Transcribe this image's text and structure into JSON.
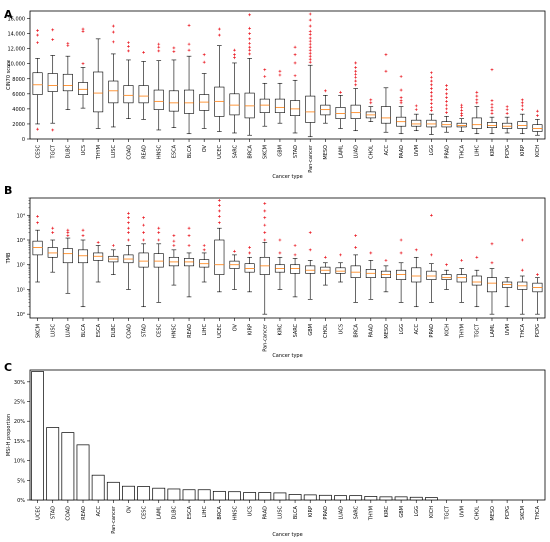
{
  "chart_data": [
    {
      "panel": "A",
      "type": "box",
      "xlabel": "Cancer type",
      "ylabel": "CIN70 score",
      "ylim": [
        0,
        17000
      ],
      "yticks": [
        0,
        2000,
        4000,
        6000,
        8000,
        10000,
        12000,
        14000,
        16000
      ],
      "ytick_labels": [
        "0",
        "2000",
        "4000",
        "6000",
        "8000",
        "10,000",
        "12,000",
        "14,000",
        "16,000"
      ],
      "categories": [
        "CESC",
        "TGCT",
        "DLBC",
        "UCS",
        "THYM",
        "LUSC",
        "COAD",
        "READ",
        "HNSC",
        "ESCA",
        "BLCA",
        "OV",
        "UCEC",
        "SARC",
        "BRCA",
        "SKCM",
        "GBM",
        "STAD",
        "Pan-cancer",
        "MESO",
        "LAML",
        "LUAD",
        "CHOL",
        "ACC",
        "PAAD",
        "UVM",
        "LGG",
        "PRAD",
        "THCA",
        "LIHC",
        "KIRC",
        "PCPG",
        "KIRP",
        "KICH"
      ],
      "boxes": [
        {
          "min": 2000,
          "q1": 5900,
          "median": 7200,
          "q3": 8800,
          "max": 10700,
          "outliers": [
            12800,
            13800,
            14400,
            1300
          ]
        },
        {
          "min": 2100,
          "q1": 6300,
          "median": 7100,
          "q3": 8700,
          "max": 11100,
          "outliers": [
            13200,
            14500,
            1200
          ]
        },
        {
          "min": 3900,
          "q1": 6400,
          "median": 7100,
          "q3": 8600,
          "max": 11000,
          "outliers": [
            12700,
            12400
          ]
        },
        {
          "min": 4100,
          "q1": 5900,
          "median": 6600,
          "q3": 7500,
          "max": 9500,
          "outliers": [
            14600,
            14300,
            10000
          ]
        },
        {
          "min": 1400,
          "q1": 3600,
          "median": 6100,
          "q3": 8900,
          "max": 13300,
          "outliers": []
        },
        {
          "min": 1600,
          "q1": 4800,
          "median": 6400,
          "q3": 7700,
          "max": 11300,
          "outliers": [
            12900,
            14200,
            15000
          ]
        },
        {
          "min": 2700,
          "q1": 4800,
          "median": 5800,
          "q3": 7100,
          "max": 10500,
          "outliers": [
            12300,
            12800,
            11700
          ]
        },
        {
          "min": 2600,
          "q1": 4800,
          "median": 5700,
          "q3": 7100,
          "max": 10300,
          "outliers": [
            11500
          ]
        },
        {
          "min": 1200,
          "q1": 3900,
          "median": 5000,
          "q3": 6500,
          "max": 10400,
          "outliers": [
            11700,
            12200,
            12600
          ]
        },
        {
          "min": 1500,
          "q1": 3700,
          "median": 4800,
          "q3": 6400,
          "max": 10500,
          "outliers": [
            11600,
            12100
          ]
        },
        {
          "min": 700,
          "q1": 3400,
          "median": 4800,
          "q3": 6500,
          "max": 11000,
          "outliers": [
            11800,
            12600,
            15100
          ]
        },
        {
          "min": 1400,
          "q1": 3800,
          "median": 4900,
          "q3": 5900,
          "max": 8700,
          "outliers": [
            11200,
            10200
          ]
        },
        {
          "min": 1000,
          "q1": 3000,
          "median": 5000,
          "q3": 6900,
          "max": 12400,
          "outliers": [
            13800,
            14600
          ]
        },
        {
          "min": 800,
          "q1": 3200,
          "median": 4500,
          "q3": 6000,
          "max": 10100,
          "outliers": [
            10800,
            11200,
            11800
          ]
        },
        {
          "min": 500,
          "q1": 2800,
          "median": 4400,
          "q3": 6100,
          "max": 10700,
          "outliers": [
            11300,
            11800,
            12200,
            12700,
            13300,
            14000,
            14700,
            16500
          ]
        },
        {
          "min": 1700,
          "q1": 3500,
          "median": 4500,
          "q3": 5300,
          "max": 7400,
          "outliers": [
            8300,
            9200
          ]
        },
        {
          "min": 2100,
          "q1": 3500,
          "median": 4200,
          "q3": 5300,
          "max": 7400,
          "outliers": [
            8500,
            9000
          ]
        },
        {
          "min": 800,
          "q1": 3100,
          "median": 4000,
          "q3": 5100,
          "max": 7800,
          "outliers": [
            8400,
            10100,
            11200,
            12200
          ]
        },
        {
          "min": 300,
          "q1": 2200,
          "median": 3600,
          "q3": 5700,
          "max": 9800,
          "outliers": [
            10200,
            10600,
            11000,
            11400,
            11800,
            12200,
            12600,
            13000,
            13400,
            13900,
            14300,
            15000,
            15800,
            16600
          ]
        },
        {
          "min": 2100,
          "q1": 3200,
          "median": 3900,
          "q3": 4500,
          "max": 5800,
          "outliers": [
            6400
          ]
        },
        {
          "min": 1400,
          "q1": 2700,
          "median": 3400,
          "q3": 4200,
          "max": 5800,
          "outliers": [
            6200
          ]
        },
        {
          "min": 1100,
          "q1": 2700,
          "median": 3500,
          "q3": 4500,
          "max": 6700,
          "outliers": [
            7200,
            7700,
            8200,
            8600,
            9000,
            9500,
            10100
          ]
        },
        {
          "min": 2300,
          "q1": 2800,
          "median": 3200,
          "q3": 3600,
          "max": 4300,
          "outliers": [
            5200,
            4800
          ]
        },
        {
          "min": 900,
          "q1": 2100,
          "median": 2800,
          "q3": 4300,
          "max": 6800,
          "outliers": [
            9000,
            11200
          ]
        },
        {
          "min": 700,
          "q1": 1700,
          "median": 2300,
          "q3": 2900,
          "max": 4300,
          "outliers": [
            4800,
            5100,
            5500,
            6500,
            8300
          ]
        },
        {
          "min": 1100,
          "q1": 1700,
          "median": 2000,
          "q3": 2500,
          "max": 3300,
          "outliers": [
            3900,
            4400
          ]
        },
        {
          "min": 600,
          "q1": 1600,
          "median": 2000,
          "q3": 2500,
          "max": 3300,
          "outliers": [
            3800,
            4200,
            4700,
            5200,
            5700,
            6200,
            6700,
            7200,
            7700,
            8200,
            8800
          ]
        },
        {
          "min": 900,
          "q1": 1600,
          "median": 1900,
          "q3": 2300,
          "max": 3000,
          "outliers": [
            3500,
            4000,
            4500,
            5000,
            5500,
            6000,
            6600,
            7100
          ]
        },
        {
          "min": 1000,
          "q1": 1600,
          "median": 1800,
          "q3": 2100,
          "max": 2700,
          "outliers": [
            3100,
            3400,
            3800,
            4200,
            4500
          ]
        },
        {
          "min": 700,
          "q1": 1400,
          "median": 1900,
          "q3": 2800,
          "max": 4300,
          "outliers": [
            4800,
            5200,
            5700,
            6200
          ]
        },
        {
          "min": 700,
          "q1": 1500,
          "median": 1800,
          "q3": 2200,
          "max": 2900,
          "outliers": [
            3400,
            3800,
            4200,
            4600,
            5100,
            9200
          ]
        },
        {
          "min": 800,
          "q1": 1400,
          "median": 1700,
          "q3": 2100,
          "max": 2900,
          "outliers": [
            3400,
            3900,
            4300
          ]
        },
        {
          "min": 700,
          "q1": 1400,
          "median": 1800,
          "q3": 2300,
          "max": 3300,
          "outliers": [
            3900,
            4400,
            4800,
            5200
          ]
        },
        {
          "min": 500,
          "q1": 1000,
          "median": 1400,
          "q3": 1900,
          "max": 2600,
          "outliers": [
            3100,
            3700
          ]
        }
      ]
    },
    {
      "panel": "B",
      "type": "box",
      "yscale": "log",
      "xlabel": "Cancer type",
      "ylabel": "TMB",
      "ylim": [
        0.7,
        50000
      ],
      "yticks": [
        1,
        10,
        100,
        1000,
        10000
      ],
      "ytick_labels": [
        "10⁰",
        "10¹",
        "10²",
        "10³",
        "10⁴"
      ],
      "categories": [
        "SKCM",
        "LUSC",
        "LUAD",
        "BLCA",
        "ESCA",
        "DLBC",
        "COAD",
        "STAD",
        "CESC",
        "HNSC",
        "READ",
        "LIHC",
        "UCEC",
        "OV",
        "KIRP",
        "Pan-cancer",
        "KIRC",
        "SARC",
        "GBM",
        "CHOL",
        "UCS",
        "BRCA",
        "PAAD",
        "MESO",
        "LGG",
        "ACC",
        "PRAD",
        "KICH",
        "THYM",
        "TGCT",
        "LAML",
        "UVM",
        "THCA",
        "PCPG"
      ],
      "boxes": [
        {
          "min": 20,
          "q1": 250,
          "median": 500,
          "q3": 900,
          "max": 2500,
          "outliers": [
            5000,
            9000
          ]
        },
        {
          "min": 50,
          "q1": 200,
          "median": 300,
          "q3": 500,
          "max": 1000,
          "outliers": [
            2000,
            3000
          ]
        },
        {
          "min": 7,
          "q1": 120,
          "median": 280,
          "q3": 450,
          "max": 1200,
          "outliers": [
            1500,
            2000,
            2500
          ]
        },
        {
          "min": 2,
          "q1": 120,
          "median": 230,
          "q3": 400,
          "max": 1000,
          "outliers": [
            1500,
            2500
          ]
        },
        {
          "min": 20,
          "q1": 150,
          "median": 220,
          "q3": 300,
          "max": 600,
          "outliers": [
            800
          ]
        },
        {
          "min": 40,
          "q1": 130,
          "median": 170,
          "q3": 220,
          "max": 400,
          "outliers": [
            600
          ]
        },
        {
          "min": 10,
          "q1": 120,
          "median": 170,
          "q3": 250,
          "max": 600,
          "outliers": [
            1000,
            2000,
            3000,
            5000,
            8000,
            12000
          ]
        },
        {
          "min": 2,
          "q1": 80,
          "median": 140,
          "q3": 300,
          "max": 700,
          "outliers": [
            1000,
            2000,
            4000,
            8000
          ]
        },
        {
          "min": 3,
          "q1": 80,
          "median": 140,
          "q3": 280,
          "max": 700,
          "outliers": [
            1000,
            2000,
            3000
          ]
        },
        {
          "min": 15,
          "q1": 90,
          "median": 130,
          "q3": 200,
          "max": 400,
          "outliers": [
            600,
            900,
            1500
          ]
        },
        {
          "min": 5,
          "q1": 90,
          "median": 130,
          "q3": 180,
          "max": 300,
          "outliers": [
            600,
            1500,
            3000
          ]
        },
        {
          "min": 20,
          "q1": 80,
          "median": 110,
          "q3": 160,
          "max": 300,
          "outliers": [
            400,
            600
          ]
        },
        {
          "min": 8,
          "q1": 40,
          "median": 100,
          "q3": 1000,
          "max": 3000,
          "outliers": [
            5000,
            9000,
            15000,
            25000,
            40000
          ]
        },
        {
          "min": 10,
          "q1": 70,
          "median": 100,
          "q3": 140,
          "max": 250,
          "outliers": [
            350
          ]
        },
        {
          "min": 8,
          "q1": 50,
          "median": 70,
          "q3": 110,
          "max": 200,
          "outliers": [
            300,
            500
          ]
        },
        {
          "min": 1,
          "q1": 40,
          "median": 90,
          "q3": 200,
          "max": 800,
          "outliers": [
            1000,
            2000,
            4000,
            8000,
            15000,
            30000
          ]
        },
        {
          "min": 10,
          "q1": 50,
          "median": 70,
          "q3": 100,
          "max": 200,
          "outliers": [
            300,
            1000
          ]
        },
        {
          "min": 5,
          "q1": 45,
          "median": 70,
          "q3": 100,
          "max": 180,
          "outliers": [
            250,
            600
          ]
        },
        {
          "min": 4,
          "q1": 45,
          "median": 60,
          "q3": 90,
          "max": 150,
          "outliers": [
            400,
            2000
          ]
        },
        {
          "min": 15,
          "q1": 45,
          "median": 60,
          "q3": 80,
          "max": 120,
          "outliers": [
            200
          ]
        },
        {
          "min": 20,
          "q1": 45,
          "median": 55,
          "q3": 75,
          "max": 120,
          "outliers": [
            250
          ]
        },
        {
          "min": 3,
          "q1": 30,
          "median": 50,
          "q3": 90,
          "max": 250,
          "outliers": [
            500,
            1500
          ]
        },
        {
          "min": 4,
          "q1": 30,
          "median": 45,
          "q3": 65,
          "max": 150,
          "outliers": [
            300
          ]
        },
        {
          "min": 8,
          "q1": 30,
          "median": 40,
          "q3": 55,
          "max": 90,
          "outliers": [
            150
          ]
        },
        {
          "min": 3,
          "q1": 25,
          "median": 40,
          "q3": 60,
          "max": 120,
          "outliers": [
            300,
            1000
          ]
        },
        {
          "min": 2,
          "q1": 20,
          "median": 35,
          "q3": 75,
          "max": 200,
          "outliers": [
            400
          ]
        },
        {
          "min": 3,
          "q1": 25,
          "median": 35,
          "q3": 55,
          "max": 110,
          "outliers": [
            250,
            10000
          ]
        },
        {
          "min": 10,
          "q1": 25,
          "median": 30,
          "q3": 40,
          "max": 60,
          "outliers": [
            100
          ]
        },
        {
          "min": 3,
          "q1": 20,
          "median": 30,
          "q3": 40,
          "max": 70,
          "outliers": [
            150
          ]
        },
        {
          "min": 2,
          "q1": 15,
          "median": 20,
          "q3": 35,
          "max": 60,
          "outliers": [
            200
          ]
        },
        {
          "min": 1,
          "q1": 8,
          "median": 18,
          "q3": 30,
          "max": 70,
          "outliers": [
            120,
            700
          ]
        },
        {
          "min": 2,
          "q1": 12,
          "median": 16,
          "q3": 20,
          "max": 30,
          "outliers": []
        },
        {
          "min": 1,
          "q1": 10,
          "median": 14,
          "q3": 20,
          "max": 35,
          "outliers": [
            60,
            1000
          ]
        },
        {
          "min": 1,
          "q1": 8,
          "median": 12,
          "q3": 18,
          "max": 30,
          "outliers": [
            40
          ]
        }
      ]
    },
    {
      "panel": "C",
      "type": "bar",
      "xlabel": "Cancer type",
      "ylabel": "MSI-H proportion",
      "ylim": [
        0,
        0.33
      ],
      "yticks": [
        0,
        0.05,
        0.1,
        0.15,
        0.2,
        0.25,
        0.3
      ],
      "ytick_labels": [
        "0%",
        "5%",
        "10%",
        "15%",
        "20%",
        "25%",
        "30%"
      ],
      "categories": [
        "UCEC",
        "STAD",
        "COAD",
        "READ",
        "ACC",
        "Pan-cancer",
        "OV",
        "CESC",
        "LAML",
        "DLBC",
        "ESCA",
        "LIHC",
        "BRCA",
        "HNSC",
        "UCS",
        "PAAD",
        "LUSC",
        "BLCA",
        "KIRP",
        "PRAD",
        "LUAD",
        "SARC",
        "THYM",
        "KIRC",
        "GBM",
        "LGG",
        "KICH",
        "TGCT",
        "UVM",
        "CHOL",
        "MESO",
        "PCPG",
        "SKCM",
        "THCA"
      ],
      "values": [
        0.326,
        0.184,
        0.171,
        0.14,
        0.063,
        0.045,
        0.035,
        0.034,
        0.03,
        0.028,
        0.026,
        0.026,
        0.022,
        0.021,
        0.019,
        0.019,
        0.018,
        0.014,
        0.013,
        0.012,
        0.011,
        0.011,
        0.009,
        0.008,
        0.008,
        0.007,
        0.006,
        0,
        0,
        0,
        0,
        0,
        0,
        0
      ]
    }
  ],
  "panel_labels": [
    "A",
    "B",
    "C"
  ],
  "colors": {
    "median": "#ff7f0e",
    "outlier": "#e8000b",
    "box": "#000000"
  }
}
